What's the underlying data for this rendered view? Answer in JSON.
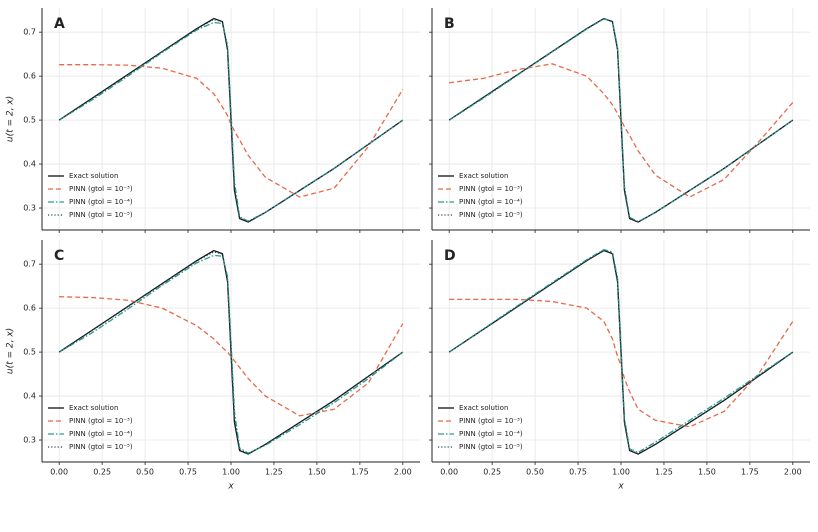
{
  "chart_data": [
    {
      "type": "line",
      "label": "A",
      "ylabel": "u(t = 2, x)",
      "grid": true,
      "legend": "lower left",
      "xlim": [
        -0.1,
        2.1
      ],
      "ylim": [
        0.25,
        0.755
      ],
      "xticks": [
        0,
        0.25,
        0.5,
        0.75,
        1,
        1.25,
        1.5,
        1.75,
        2
      ],
      "yticks": [
        0.3,
        0.4,
        0.5,
        0.6,
        0.7
      ],
      "x": [
        0,
        0.2,
        0.4,
        0.6,
        0.8,
        0.9,
        0.95,
        0.98,
        1.0,
        1.02,
        1.05,
        1.1,
        1.2,
        1.4,
        1.6,
        1.8,
        2.0
      ],
      "series": [
        {
          "name": "Exact solution",
          "color": "#111111",
          "style": "solid",
          "values": [
            0.5,
            0.552,
            0.604,
            0.656,
            0.708,
            0.731,
            0.724,
            0.66,
            0.5,
            0.34,
            0.276,
            0.268,
            0.29,
            0.34,
            0.39,
            0.445,
            0.5
          ]
        },
        {
          "name": "PINN (gtol = 10⁻³)",
          "color": "#e8694a",
          "style": "dashed",
          "values": [
            0.626,
            0.626,
            0.625,
            0.618,
            0.595,
            0.56,
            0.53,
            0.51,
            0.49,
            0.475,
            0.455,
            0.42,
            0.37,
            0.325,
            0.345,
            0.44,
            0.57
          ]
        },
        {
          "name": "PINN (gtol = 10⁻⁴)",
          "color": "#2a9d8f",
          "style": "dashdot",
          "values": [
            0.5,
            0.548,
            0.6,
            0.654,
            0.705,
            0.722,
            0.72,
            0.67,
            0.52,
            0.36,
            0.28,
            0.27,
            0.29,
            0.34,
            0.39,
            0.445,
            0.5
          ]
        },
        {
          "name": "PINN (gtol = 10⁻⁵)",
          "color": "#264653",
          "style": "dotted",
          "values": [
            0.5,
            0.551,
            0.603,
            0.656,
            0.707,
            0.729,
            0.724,
            0.662,
            0.505,
            0.345,
            0.278,
            0.269,
            0.29,
            0.34,
            0.39,
            0.445,
            0.5
          ]
        }
      ]
    },
    {
      "type": "line",
      "label": "B",
      "grid": true,
      "legend": "lower left",
      "xlim": [
        -0.1,
        2.1
      ],
      "ylim": [
        0.25,
        0.755
      ],
      "xticks": [
        0,
        0.25,
        0.5,
        0.75,
        1,
        1.25,
        1.5,
        1.75,
        2
      ],
      "yticks": [
        0.3,
        0.4,
        0.5,
        0.6,
        0.7
      ],
      "x": [
        0,
        0.2,
        0.4,
        0.6,
        0.8,
        0.9,
        0.95,
        0.98,
        1.0,
        1.02,
        1.05,
        1.1,
        1.2,
        1.4,
        1.6,
        1.8,
        2.0
      ],
      "series": [
        {
          "name": "Exact solution",
          "color": "#111111",
          "style": "solid",
          "values": [
            0.5,
            0.552,
            0.604,
            0.656,
            0.708,
            0.731,
            0.724,
            0.66,
            0.5,
            0.34,
            0.276,
            0.268,
            0.29,
            0.34,
            0.39,
            0.445,
            0.5
          ]
        },
        {
          "name": "PINN (gtol = 10⁻³)",
          "color": "#e8694a",
          "style": "dashed",
          "values": [
            0.585,
            0.595,
            0.615,
            0.628,
            0.6,
            0.56,
            0.535,
            0.515,
            0.5,
            0.485,
            0.465,
            0.43,
            0.375,
            0.325,
            0.365,
            0.45,
            0.54
          ]
        },
        {
          "name": "PINN (gtol = 10⁻⁴)",
          "color": "#2a9d8f",
          "style": "dashdot",
          "values": [
            0.5,
            0.55,
            0.603,
            0.655,
            0.707,
            0.73,
            0.725,
            0.665,
            0.51,
            0.35,
            0.279,
            0.269,
            0.29,
            0.34,
            0.39,
            0.445,
            0.5
          ]
        },
        {
          "name": "PINN (gtol = 10⁻⁵)",
          "color": "#264653",
          "style": "dotted",
          "values": [
            0.5,
            0.552,
            0.604,
            0.656,
            0.708,
            0.731,
            0.724,
            0.661,
            0.502,
            0.342,
            0.277,
            0.268,
            0.29,
            0.34,
            0.39,
            0.445,
            0.5
          ]
        }
      ]
    },
    {
      "type": "line",
      "label": "C",
      "ylabel": "u(t = 2, x)",
      "xlabel": "x",
      "grid": true,
      "legend": "lower left",
      "xlim": [
        -0.1,
        2.1
      ],
      "ylim": [
        0.25,
        0.755
      ],
      "xticks": [
        {
          "value": 0,
          "label": "0.00"
        },
        {
          "value": 0.25,
          "label": "0.25"
        },
        {
          "value": 0.5,
          "label": "0.50"
        },
        {
          "value": 0.75,
          "label": "0.75"
        },
        {
          "value": 1,
          "label": "1.00"
        },
        {
          "value": 1.25,
          "label": "1.25"
        },
        {
          "value": 1.5,
          "label": "1.50"
        },
        {
          "value": 1.75,
          "label": "1.75"
        },
        {
          "value": 2,
          "label": "2.00"
        }
      ],
      "yticks": [
        0.3,
        0.4,
        0.5,
        0.6,
        0.7
      ],
      "x": [
        0,
        0.2,
        0.4,
        0.6,
        0.8,
        0.9,
        0.95,
        0.98,
        1.0,
        1.02,
        1.05,
        1.1,
        1.2,
        1.4,
        1.6,
        1.8,
        2.0
      ],
      "series": [
        {
          "name": "Exact solution",
          "color": "#111111",
          "style": "solid",
          "values": [
            0.5,
            0.552,
            0.604,
            0.656,
            0.708,
            0.731,
            0.724,
            0.66,
            0.5,
            0.34,
            0.276,
            0.268,
            0.29,
            0.34,
            0.39,
            0.445,
            0.5
          ]
        },
        {
          "name": "PINN (gtol = 10⁻³)",
          "color": "#e8694a",
          "style": "dashed",
          "values": [
            0.626,
            0.624,
            0.618,
            0.6,
            0.56,
            0.53,
            0.51,
            0.5,
            0.49,
            0.48,
            0.465,
            0.44,
            0.4,
            0.355,
            0.37,
            0.43,
            0.565
          ]
        },
        {
          "name": "PINN (gtol = 10⁻⁴)",
          "color": "#2a9d8f",
          "style": "dashdot",
          "values": [
            0.5,
            0.546,
            0.598,
            0.652,
            0.703,
            0.72,
            0.718,
            0.672,
            0.525,
            0.365,
            0.282,
            0.27,
            0.288,
            0.335,
            0.385,
            0.44,
            0.5
          ]
        },
        {
          "name": "PINN (gtol = 10⁻⁵)",
          "color": "#264653",
          "style": "dotted",
          "values": [
            0.5,
            0.551,
            0.603,
            0.655,
            0.707,
            0.728,
            0.723,
            0.663,
            0.506,
            0.346,
            0.278,
            0.269,
            0.29,
            0.34,
            0.39,
            0.445,
            0.5
          ]
        }
      ]
    },
    {
      "type": "line",
      "label": "D",
      "xlabel": "x",
      "grid": true,
      "legend": "lower left",
      "xlim": [
        -0.1,
        2.1
      ],
      "ylim": [
        0.25,
        0.755
      ],
      "xticks": [
        {
          "value": 0,
          "label": "0.00"
        },
        {
          "value": 0.25,
          "label": "0.25"
        },
        {
          "value": 0.5,
          "label": "0.50"
        },
        {
          "value": 0.75,
          "label": "0.75"
        },
        {
          "value": 1,
          "label": "1.00"
        },
        {
          "value": 1.25,
          "label": "1.25"
        },
        {
          "value": 1.5,
          "label": "1.50"
        },
        {
          "value": 1.75,
          "label": "1.75"
        },
        {
          "value": 2,
          "label": "2.00"
        }
      ],
      "yticks": [
        0.3,
        0.4,
        0.5,
        0.6,
        0.7
      ],
      "x": [
        0,
        0.2,
        0.4,
        0.6,
        0.8,
        0.9,
        0.95,
        0.98,
        1.0,
        1.02,
        1.05,
        1.1,
        1.2,
        1.4,
        1.6,
        1.8,
        2.0
      ],
      "series": [
        {
          "name": "Exact solution",
          "color": "#111111",
          "style": "solid",
          "values": [
            0.5,
            0.552,
            0.604,
            0.656,
            0.708,
            0.731,
            0.724,
            0.66,
            0.5,
            0.34,
            0.276,
            0.268,
            0.29,
            0.34,
            0.39,
            0.445,
            0.5
          ]
        },
        {
          "name": "PINN (gtol = 10⁻³)",
          "color": "#e8694a",
          "style": "dashed",
          "values": [
            0.62,
            0.62,
            0.62,
            0.615,
            0.6,
            0.57,
            0.53,
            0.49,
            0.47,
            0.44,
            0.41,
            0.37,
            0.345,
            0.33,
            0.365,
            0.45,
            0.57
          ]
        },
        {
          "name": "PINN (gtol = 10⁻⁴)",
          "color": "#2a9d8f",
          "style": "dashdot",
          "values": [
            0.5,
            0.553,
            0.606,
            0.658,
            0.71,
            0.733,
            0.728,
            0.668,
            0.515,
            0.35,
            0.28,
            0.272,
            0.295,
            0.345,
            0.395,
            0.448,
            0.5
          ]
        },
        {
          "name": "PINN (gtol = 10⁻⁵)",
          "color": "#264653",
          "style": "dotted",
          "values": [
            0.5,
            0.552,
            0.604,
            0.656,
            0.708,
            0.732,
            0.725,
            0.662,
            0.503,
            0.343,
            0.277,
            0.269,
            0.29,
            0.34,
            0.39,
            0.445,
            0.5
          ]
        }
      ]
    }
  ]
}
